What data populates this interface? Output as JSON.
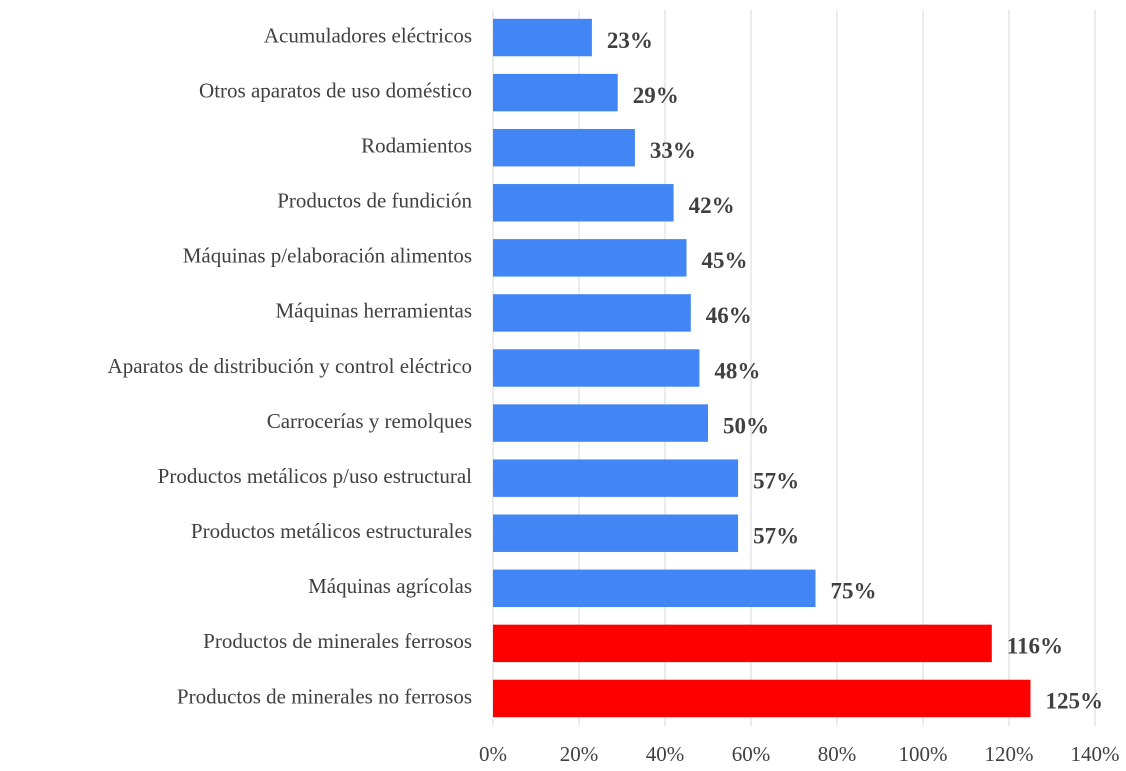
{
  "chart_data": {
    "type": "bar",
    "orientation": "horizontal",
    "categories": [
      "Acumuladores eléctricos",
      "Otros aparatos de uso doméstico",
      "Rodamientos",
      "Productos de fundición",
      "Máquinas p/elaboración alimentos",
      "Máquinas herramientas",
      "Aparatos de distribución y control eléctrico",
      "Carrocerías y remolques",
      "Productos metálicos p/uso estructural",
      "Productos metálicos estructurales",
      "Máquinas agrícolas",
      "Productos de minerales ferrosos",
      "Productos de minerales no ferrosos"
    ],
    "values": [
      23,
      29,
      33,
      42,
      45,
      46,
      48,
      50,
      57,
      57,
      75,
      116,
      125
    ],
    "value_labels": [
      "23%",
      "29%",
      "33%",
      "42%",
      "45%",
      "46%",
      "48%",
      "50%",
      "57%",
      "57%",
      "75%",
      "116%",
      "125%"
    ],
    "colors": [
      "#4285f4",
      "#4285f4",
      "#4285f4",
      "#4285f4",
      "#4285f4",
      "#4285f4",
      "#4285f4",
      "#4285f4",
      "#4285f4",
      "#4285f4",
      "#4285f4",
      "#ff0000",
      "#ff0000"
    ],
    "xlim": [
      0,
      140
    ],
    "xticks": [
      {
        "value": 0,
        "label": "0%"
      },
      {
        "value": 20,
        "label": "20%"
      },
      {
        "value": 40,
        "label": "40%"
      },
      {
        "value": 60,
        "label": "60%"
      },
      {
        "value": 80,
        "label": "80%"
      },
      {
        "value": 100,
        "label": "100%"
      },
      {
        "value": 120,
        "label": "120%"
      },
      {
        "value": 140,
        "label": "140%"
      }
    ],
    "grid": true
  }
}
